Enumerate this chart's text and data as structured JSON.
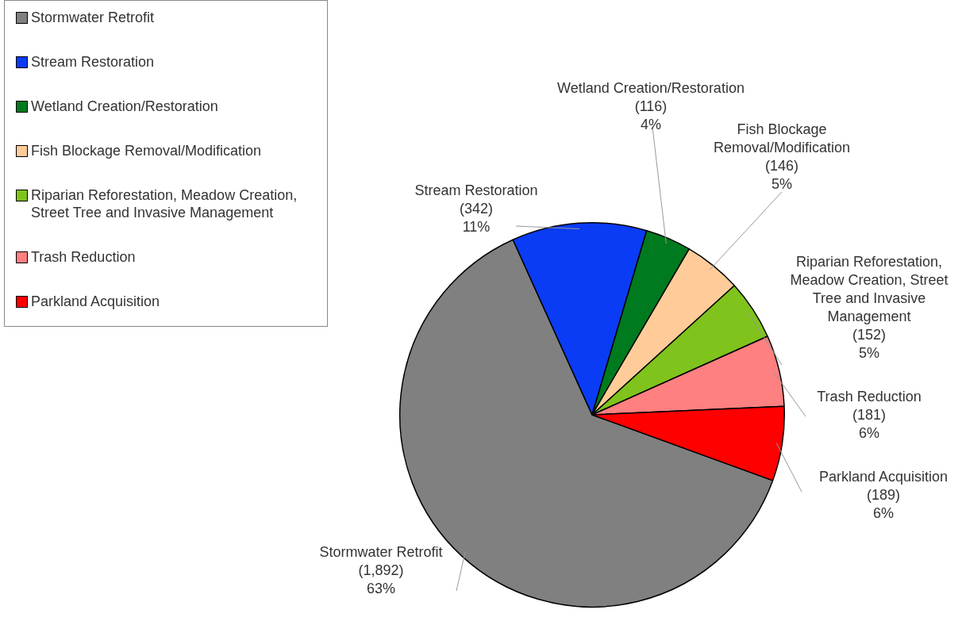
{
  "chart_data": {
    "type": "pie",
    "categories": [
      "Stormwater Retrofit",
      "Stream Restoration",
      "Wetland Creation/Restoration",
      "Fish Blockage Removal/Modification",
      "Riparian Reforestation, Meadow Creation, Street Tree and Invasive Management",
      "Trash Reduction",
      "Parkland Acquisition"
    ],
    "values": [
      1892,
      342,
      116,
      146,
      152,
      181,
      189
    ],
    "colors": [
      "#808080",
      "#0a3cf5",
      "#007a1e",
      "#ffcc99",
      "#80c31c",
      "#ff8080",
      "#ff0000"
    ],
    "value_labels": [
      "(1,892)\n63%",
      "(342)\n11%",
      "(116)\n4%",
      "(146)\n5%",
      "(152)\n5%",
      "(181)\n6%",
      "(189)\n6%"
    ],
    "legend": "top left"
  }
}
